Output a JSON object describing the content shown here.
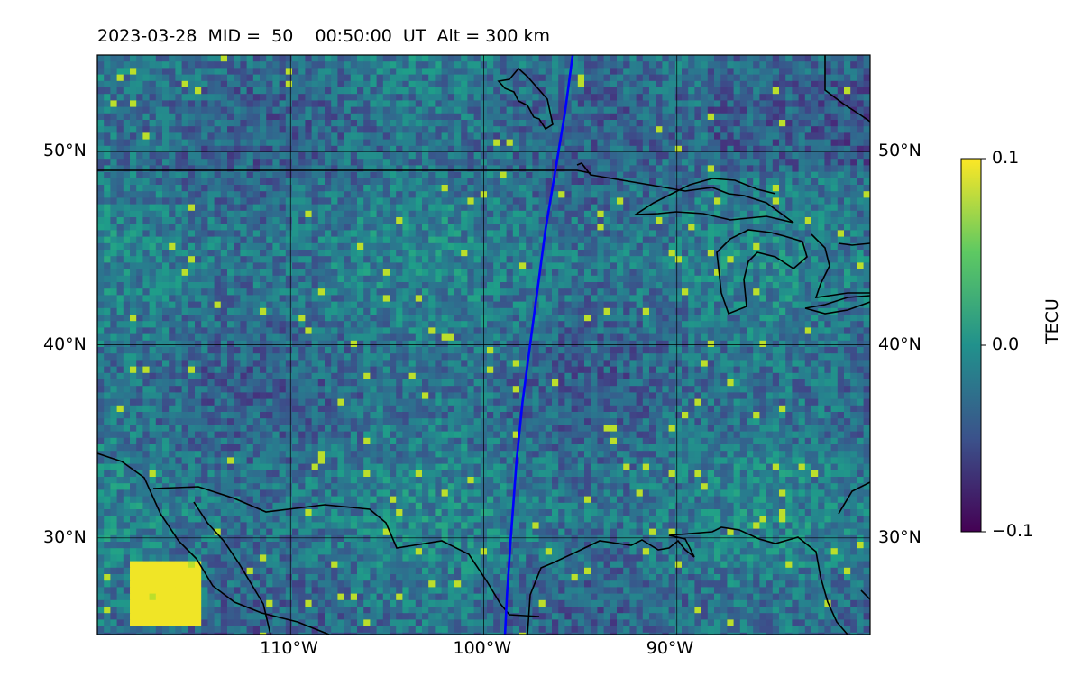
{
  "title": "2023-03-28  MID =  50    00:50:00  UT  Alt = 300 km",
  "map": {
    "lon_range": [
      -120,
      -80
    ],
    "lat_range": [
      25,
      55
    ],
    "x_ticks": [
      "110°W",
      "100°W",
      "90°W"
    ],
    "x_tick_values": [
      -110,
      -100,
      -90
    ],
    "y_ticks": [
      "50°N",
      "40°N",
      "30°N"
    ],
    "y_tick_values": [
      50,
      40,
      30
    ],
    "grid": true,
    "colormap": "viridis",
    "track_color": "#0000ff",
    "track": [
      [
        -95.4,
        55
      ],
      [
        -95.8,
        52
      ],
      [
        -96.3,
        49
      ],
      [
        -96.8,
        46
      ],
      [
        -97.2,
        43
      ],
      [
        -97.6,
        40
      ],
      [
        -98.0,
        37
      ],
      [
        -98.3,
        34
      ],
      [
        -98.6,
        30
      ],
      [
        -98.8,
        27
      ],
      [
        -98.9,
        25
      ]
    ],
    "coastline_color": "#000000"
  },
  "colorbar": {
    "label": "TECU",
    "ticks": [
      "0.1",
      "0.0",
      "−0.1"
    ],
    "tick_values": [
      0.1,
      0.0,
      -0.1
    ],
    "vmin": -0.1,
    "vmax": 0.1
  }
}
